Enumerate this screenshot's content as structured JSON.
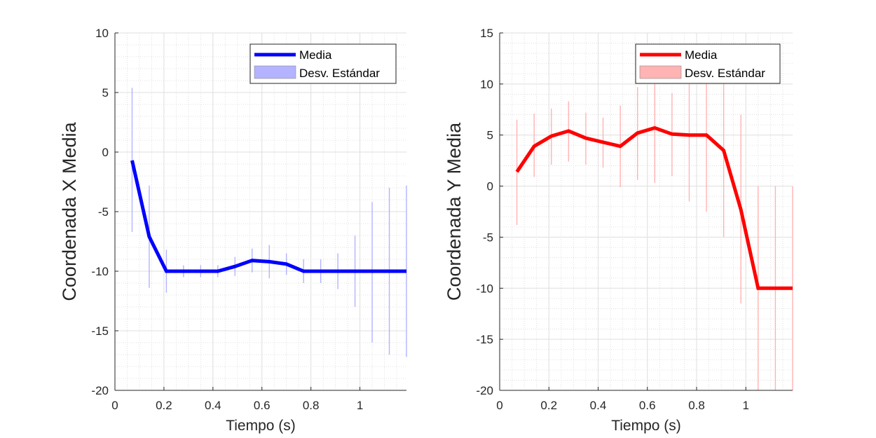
{
  "chart_data": [
    {
      "type": "line",
      "xlabel": "Tiempo (s)",
      "ylabel": "Coordenada X Media",
      "xlim": [
        0,
        1.19
      ],
      "ylim": [
        -20,
        10
      ],
      "xticks": [
        0,
        0.2,
        0.4,
        0.6,
        0.8,
        1
      ],
      "xtick_labels": [
        "0",
        "0.2",
        "0.4",
        "0.6",
        "0.8",
        "1"
      ],
      "yticks": [
        -20,
        -15,
        -10,
        -5,
        0,
        5,
        10
      ],
      "ytick_labels": [
        "-20",
        "-15",
        "-10",
        "-5",
        "0",
        "5",
        "10"
      ],
      "grid": true,
      "minor_grid": true,
      "legend_position": "top-right",
      "color": "#0000ff",
      "band_color": "#b3b3ff",
      "legend": [
        "Media",
        "Desv. Estándar"
      ],
      "series": [
        {
          "name": "Media",
          "x": [
            0.07,
            0.14,
            0.21,
            0.28,
            0.35,
            0.42,
            0.49,
            0.56,
            0.63,
            0.7,
            0.77,
            0.84,
            0.91,
            0.98,
            1.05,
            1.12,
            1.19
          ],
          "values": [
            -0.7,
            -7.1,
            -10,
            -10,
            -10,
            -10,
            -9.6,
            -9.1,
            -9.2,
            -9.4,
            -10,
            -10,
            -10,
            -10,
            -10,
            -10,
            -10
          ]
        },
        {
          "name": "Desv. Estándar",
          "x": [
            0.07,
            0.14,
            0.21,
            0.28,
            0.35,
            0.42,
            0.49,
            0.56,
            0.63,
            0.7,
            0.77,
            0.84,
            0.91,
            0.98,
            1.05,
            1.12,
            1.19
          ],
          "lower": [
            -6.7,
            -11.4,
            -11.8,
            -10.5,
            -10.5,
            -10.5,
            -10.4,
            -10.1,
            -10.6,
            -10.3,
            -11,
            -11,
            -11.5,
            -13,
            -16,
            -17,
            -17.2
          ],
          "upper": [
            5.4,
            -2.8,
            -8.2,
            -9.5,
            -9.5,
            -9.5,
            -8.8,
            -8.1,
            -7.8,
            -8.5,
            -9,
            -9,
            -8.5,
            -7,
            -4.2,
            -3,
            -2.8
          ]
        }
      ]
    },
    {
      "type": "line",
      "xlabel": "Tiempo (s)",
      "ylabel": "Coordenada Y Media",
      "xlim": [
        0,
        1.19
      ],
      "ylim": [
        -20,
        15
      ],
      "xticks": [
        0,
        0.2,
        0.4,
        0.6,
        0.8,
        1
      ],
      "xtick_labels": [
        "0",
        "0.2",
        "0.4",
        "0.6",
        "0.8",
        "1"
      ],
      "yticks": [
        -20,
        -15,
        -10,
        -5,
        0,
        5,
        10,
        15
      ],
      "ytick_labels": [
        "-20",
        "-15",
        "-10",
        "-5",
        "0",
        "5",
        "10",
        "15"
      ],
      "grid": true,
      "minor_grid": true,
      "legend_position": "top-right",
      "color": "#ff0000",
      "band_color": "#ffb3b3",
      "legend": [
        "Media",
        "Desv. Estándar"
      ],
      "series": [
        {
          "name": "Media",
          "x": [
            0.07,
            0.14,
            0.21,
            0.28,
            0.35,
            0.42,
            0.49,
            0.56,
            0.63,
            0.7,
            0.77,
            0.84,
            0.91,
            0.98,
            1.05,
            1.12,
            1.19
          ],
          "values": [
            1.4,
            3.9,
            4.9,
            5.4,
            4.7,
            4.3,
            3.9,
            5.2,
            5.7,
            5.1,
            5.0,
            5.0,
            3.5,
            -2.3,
            -10,
            -10,
            -10
          ]
        },
        {
          "name": "Desv. Estándar",
          "x": [
            0.07,
            0.14,
            0.21,
            0.28,
            0.35,
            0.42,
            0.49,
            0.56,
            0.63,
            0.7,
            0.77,
            0.84,
            0.91,
            0.98,
            1.05,
            1.12,
            1.19
          ],
          "lower": [
            -3.8,
            0.9,
            2.1,
            2.4,
            2.1,
            1.8,
            -0.1,
            0.6,
            0.3,
            1.0,
            -1.5,
            -2.5,
            -5,
            -11.5,
            -20,
            -20,
            -20
          ],
          "upper": [
            6.5,
            7.1,
            7.6,
            8.3,
            7.2,
            6.7,
            7.9,
            9.7,
            11.0,
            9.1,
            11.4,
            12.4,
            12,
            7,
            0,
            0,
            0
          ]
        }
      ]
    }
  ]
}
